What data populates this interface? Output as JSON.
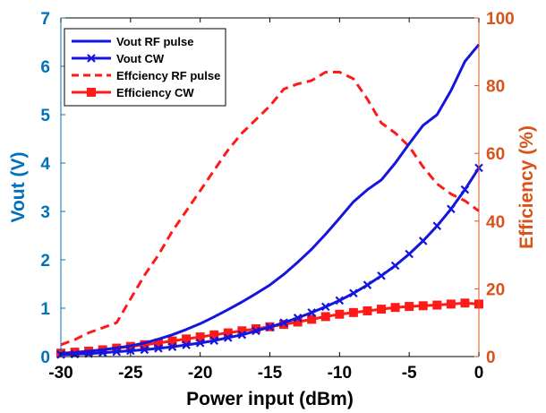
{
  "chart_data": {
    "type": "line",
    "xlabel": "Power input (dBm)",
    "ylabel_left": "Vout (V)",
    "ylabel_right": "Efficiency (%)",
    "xlim": [
      -30,
      0
    ],
    "ylim_left": [
      0,
      7
    ],
    "ylim_right": [
      0,
      100
    ],
    "xticks": [
      -30,
      -25,
      -20,
      -15,
      -10,
      -5,
      0
    ],
    "yticks_left": [
      0,
      1,
      2,
      3,
      4,
      5,
      6,
      7
    ],
    "yticks_right": [
      0,
      20,
      40,
      60,
      80,
      100
    ],
    "grid": false,
    "legend_position": "top-left",
    "colors": {
      "left_axis": "#0072BD",
      "right_axis": "#D95319",
      "blue_series": "#1515E0",
      "red_series": "#FF1A1A"
    },
    "series": [
      {
        "name": "Vout RF pulse",
        "axis": "left",
        "style": "solid",
        "marker": "none",
        "x": [
          -30,
          -29,
          -28,
          -27,
          -26,
          -25,
          -24,
          -23,
          -22,
          -21,
          -20,
          -19,
          -18,
          -17,
          -16,
          -15,
          -14,
          -13,
          -12,
          -11,
          -10,
          -9,
          -8,
          -7,
          -6,
          -5,
          -4,
          -3,
          -2,
          -1,
          0
        ],
        "y": [
          0.06,
          0.08,
          0.11,
          0.14,
          0.18,
          0.22,
          0.28,
          0.36,
          0.45,
          0.56,
          0.68,
          0.82,
          0.97,
          1.13,
          1.3,
          1.48,
          1.7,
          1.95,
          2.22,
          2.53,
          2.86,
          3.2,
          3.45,
          3.65,
          4.0,
          4.4,
          4.78,
          5.0,
          5.5,
          6.1,
          6.45
        ]
      },
      {
        "name": "Vout CW",
        "axis": "left",
        "style": "solid",
        "marker": "x",
        "x": [
          -30,
          -29,
          -28,
          -27,
          -26,
          -25,
          -24,
          -23,
          -22,
          -21,
          -20,
          -19,
          -18,
          -17,
          -16,
          -15,
          -14,
          -13,
          -12,
          -11,
          -10,
          -9,
          -8,
          -7,
          -6,
          -5,
          -4,
          -3,
          -2,
          -1,
          0
        ],
        "y": [
          0.04,
          0.05,
          0.06,
          0.08,
          0.1,
          0.12,
          0.14,
          0.17,
          0.2,
          0.24,
          0.28,
          0.33,
          0.39,
          0.45,
          0.53,
          0.61,
          0.7,
          0.8,
          0.91,
          1.03,
          1.16,
          1.31,
          1.48,
          1.67,
          1.88,
          2.12,
          2.39,
          2.7,
          3.05,
          3.45,
          3.9
        ]
      },
      {
        "name": "Effciency RF pulse",
        "axis": "right",
        "style": "dashed",
        "marker": "none",
        "x": [
          -30,
          -29,
          -28,
          -27,
          -26,
          -25,
          -24,
          -23,
          -22,
          -21,
          -20,
          -19,
          -18,
          -17,
          -16,
          -15,
          -14,
          -13,
          -12,
          -11,
          -10,
          -9,
          -8,
          -7,
          -6,
          -5,
          -4,
          -3,
          -2,
          -1,
          0
        ],
        "y": [
          3.5,
          5,
          7,
          8.5,
          10,
          17,
          24,
          30,
          37,
          43,
          49,
          55,
          61,
          66,
          70,
          74,
          79,
          80.5,
          81.5,
          84,
          84,
          82,
          76,
          69,
          66,
          62,
          56,
          51,
          48,
          46,
          43
        ]
      },
      {
        "name": "Efficiency CW",
        "axis": "right",
        "style": "solid",
        "marker": "square",
        "x": [
          -30,
          -29,
          -28,
          -27,
          -26,
          -25,
          -24,
          -23,
          -22,
          -21,
          -20,
          -19,
          -18,
          -17,
          -16,
          -15,
          -14,
          -13,
          -12,
          -11,
          -10,
          -9,
          -8,
          -7,
          -6,
          -5,
          -4,
          -3,
          -2,
          -1,
          0
        ],
        "y": [
          1,
          1.3,
          1.6,
          2,
          2.5,
          3,
          3.5,
          4,
          4.6,
          5.2,
          5.8,
          6.4,
          7,
          7.6,
          8.2,
          8.8,
          9.5,
          10.2,
          11,
          11.8,
          12.5,
          13,
          13.5,
          14,
          14.5,
          14.8,
          15,
          15.2,
          15.5,
          15.8,
          15.5
        ]
      }
    ]
  }
}
